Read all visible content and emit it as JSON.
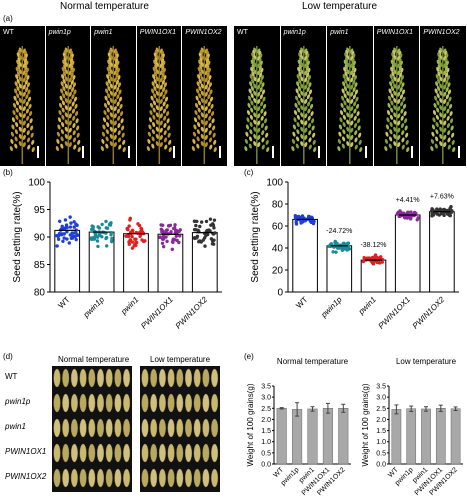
{
  "panel_a": {
    "label": "(a)",
    "normal_title": "Normal temperature",
    "low_title": "Low temperature",
    "normal_cells": [
      "WT",
      "pwin1p",
      "pwin1",
      "PWIN1OX1",
      "PWIN1OX2"
    ],
    "low_cells": [
      "WT",
      "pwin1p",
      "pwin1",
      "PWIN1OX1",
      "PWIN1OX2"
    ]
  },
  "panel_d": {
    "label": "(d)",
    "normal_title": "Normal temperature",
    "low_title": "Low temperature",
    "rows": [
      "WT",
      "pwin1p",
      "pwin1",
      "PWIN1OX1",
      "PWIN1OX2"
    ]
  },
  "colors": {
    "WT": "#1f3fd6",
    "pwin1p": "#1a8a9a",
    "pwin1": "#e02020",
    "PWIN1OX1": "#8a2a9a",
    "PWIN1OX2": "#333333",
    "bar_gray": "#a8a8a8"
  },
  "chart_data": [
    {
      "id": "b",
      "label": "(b)",
      "type": "bar",
      "ylabel": "Seed setting rate(%)",
      "ylim": [
        80,
        100
      ],
      "yticks": [
        "80",
        "85",
        "90",
        "95",
        "100"
      ],
      "categories": [
        "WT",
        "pwin1p",
        "pwin1",
        "PWIN1OX1",
        "PWIN1OX2"
      ],
      "values": [
        91.2,
        90.9,
        90.6,
        90.5,
        90.8
      ],
      "annotations": []
    },
    {
      "id": "c",
      "label": "(c)",
      "type": "bar",
      "ylabel": "Seed setting rate(%)",
      "ylim": [
        0,
        100
      ],
      "yticks": [
        "0",
        "20",
        "40",
        "60",
        "80",
        "100"
      ],
      "categories": [
        "WT",
        "pwin1p",
        "pwin1",
        "PWIN1OX1",
        "PWIN1OX2"
      ],
      "values": [
        66,
        42,
        29,
        70,
        73
      ],
      "annotations": [
        "",
        "-24.72%",
        "-38.12%",
        "+4.41%",
        "+7.63%"
      ]
    },
    {
      "id": "e1",
      "label": "(e)",
      "type": "bar",
      "title": "Normal temperature",
      "ylabel": "Weight of 100 grains(g)",
      "ylim": [
        0,
        3.5
      ],
      "yticks": [
        "0.0",
        "0.5",
        "1.0",
        "1.5",
        "2.0",
        "2.5",
        "3.0",
        "3.5"
      ],
      "categories": [
        "WT",
        "pwin1p",
        "pwin1",
        "PWIN1OX1",
        "PWIN1OX2"
      ],
      "values": [
        2.5,
        2.45,
        2.47,
        2.5,
        2.5
      ],
      "errors": [
        0.03,
        0.3,
        0.1,
        0.22,
        0.18
      ]
    },
    {
      "id": "e2",
      "label": "",
      "type": "bar",
      "title": "Low temperature",
      "ylabel": "Weight of 100 grains(g)",
      "ylim": [
        0,
        3.5
      ],
      "yticks": [
        "0.0",
        "0.5",
        "1.0",
        "1.5",
        "2.0",
        "2.5",
        "3.0",
        "3.5"
      ],
      "categories": [
        "WT",
        "pwin1p",
        "pwin1",
        "PWIN1OX1",
        "PWIN1OX2"
      ],
      "values": [
        2.45,
        2.48,
        2.47,
        2.5,
        2.48
      ],
      "errors": [
        0.2,
        0.12,
        0.1,
        0.14,
        0.08
      ]
    }
  ]
}
